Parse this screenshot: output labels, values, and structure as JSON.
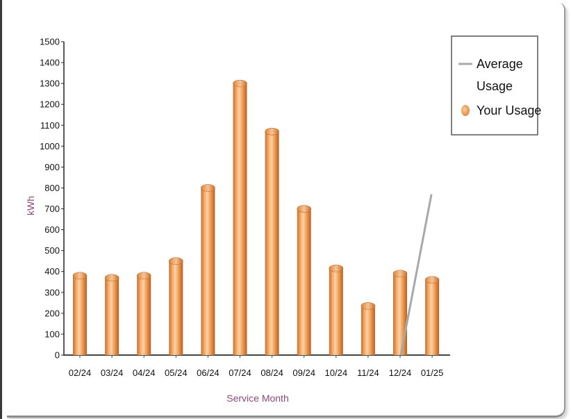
{
  "chart_data": {
    "type": "bar",
    "categories": [
      "02/24",
      "03/24",
      "04/24",
      "05/24",
      "06/24",
      "07/24",
      "08/24",
      "09/24",
      "10/24",
      "11/24",
      "12/24",
      "01/25"
    ],
    "series": [
      {
        "name": "Your Usage",
        "type": "bar",
        "color": "#f0a05a",
        "values": [
          380,
          370,
          380,
          450,
          800,
          1300,
          1070,
          700,
          415,
          235,
          390,
          360
        ]
      },
      {
        "name": "Average Usage",
        "type": "line",
        "color": "#a8a8a8",
        "values": [
          null,
          null,
          null,
          null,
          null,
          null,
          null,
          null,
          null,
          null,
          0,
          770
        ]
      }
    ],
    "title": "",
    "xlabel": "Service Month",
    "ylabel": "kWh",
    "ylim": [
      0,
      1500
    ],
    "yticks": [
      0,
      100,
      200,
      300,
      400,
      500,
      600,
      700,
      800,
      900,
      1000,
      1100,
      1200,
      1300,
      1400,
      1500
    ],
    "legend": {
      "position": "top-right",
      "items": [
        {
          "label_line1": "Average",
          "label_line2": "Usage",
          "marker": "line"
        },
        {
          "label_line1": "Your Usage",
          "label_line2": "",
          "marker": "circle"
        }
      ]
    },
    "grid": false
  }
}
